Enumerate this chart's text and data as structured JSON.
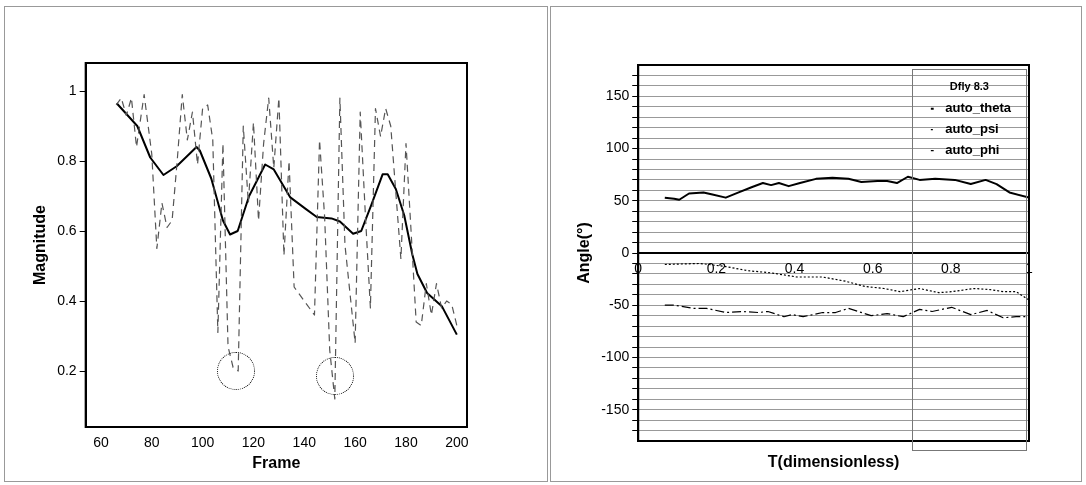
{
  "chart_data": [
    {
      "type": "line",
      "xlabel": "Frame",
      "ylabel": "Magnitude",
      "xlim": [
        54,
        204
      ],
      "xticks": [
        60,
        80,
        100,
        120,
        140,
        160,
        180,
        200
      ],
      "ylim": [
        0.04,
        1.08
      ],
      "yticks": [
        0.2,
        0.4,
        0.6,
        0.8,
        1
      ],
      "grid": false,
      "legend": false,
      "series": [
        {
          "color": "#555555",
          "line_style": "dashed",
          "x": [
            66,
            68,
            70,
            72,
            74,
            77,
            80,
            82,
            84,
            86,
            88,
            90,
            92,
            94,
            96,
            98,
            100,
            102,
            104,
            106,
            108,
            110,
            112,
            114,
            116,
            118,
            120,
            122,
            124,
            126,
            128,
            130,
            132,
            134,
            136,
            140,
            144,
            146,
            148,
            150,
            152,
            154,
            156,
            160,
            162,
            164,
            166,
            168,
            170,
            172,
            174,
            178,
            180,
            182,
            184,
            186,
            188,
            190,
            192,
            194,
            196,
            198,
            200
          ],
          "values": [
            0.96,
            0.98,
            0.93,
            0.98,
            0.84,
            0.99,
            0.82,
            0.55,
            0.68,
            0.61,
            0.63,
            0.8,
            0.99,
            0.86,
            0.94,
            0.79,
            0.95,
            0.96,
            0.86,
            0.31,
            0.85,
            0.27,
            0.21,
            0.2,
            0.9,
            0.68,
            0.91,
            0.63,
            0.85,
            0.98,
            0.78,
            0.98,
            0.53,
            0.8,
            0.44,
            0.4,
            0.36,
            0.86,
            0.64,
            0.26,
            0.12,
            0.98,
            0.56,
            0.28,
            0.94,
            0.65,
            0.38,
            0.95,
            0.87,
            0.95,
            0.9,
            0.52,
            0.85,
            0.6,
            0.34,
            0.33,
            0.45,
            0.36,
            0.45,
            0.38,
            0.4,
            0.39,
            0.33
          ]
        },
        {
          "color": "#000000",
          "line_style": "solid",
          "x": [
            66.2,
            74.3,
            79.4,
            84.6,
            89.8,
            97.6,
            98.9,
            103.4,
            108,
            110.8,
            113.8,
            118.3,
            124.6,
            128,
            134.5,
            140.4,
            144.9,
            150.7,
            154,
            159.2,
            162.4,
            166.3,
            170.8,
            172.8,
            176,
            179.3,
            182.5,
            184.5,
            188.3,
            194.2,
            200
          ],
          "values": [
            0.965,
            0.9,
            0.81,
            0.76,
            0.785,
            0.84,
            0.83,
            0.75,
            0.63,
            0.59,
            0.6,
            0.7,
            0.79,
            0.776,
            0.696,
            0.664,
            0.64,
            0.636,
            0.627,
            0.592,
            0.6,
            0.673,
            0.762,
            0.762,
            0.72,
            0.645,
            0.533,
            0.477,
            0.423,
            0.384,
            0.304
          ]
        }
      ]
    },
    {
      "type": "line",
      "xlabel": "T(dimensionless)",
      "ylabel": "Angle(°)",
      "xlim": [
        0,
        1
      ],
      "xticks": [
        0,
        0.2,
        0.4,
        0.6,
        0.8,
        1
      ],
      "ylim": [
        -180,
        180
      ],
      "yticks": [
        {
          "value": -170,
          "label": null
        },
        {
          "value": -160,
          "label": null
        },
        -150,
        {
          "value": -140,
          "label": null
        },
        {
          "value": -130,
          "label": null
        },
        {
          "value": -120,
          "label": null
        },
        {
          "value": -110,
          "label": null
        },
        -100,
        {
          "value": -90,
          "label": null
        },
        {
          "value": -80,
          "label": null
        },
        {
          "value": -70,
          "label": null
        },
        {
          "value": -60,
          "label": null
        },
        -50,
        {
          "value": -40,
          "label": null
        },
        {
          "value": -30,
          "label": null
        },
        {
          "value": -20,
          "label": null
        },
        {
          "value": -10,
          "label": null
        },
        0,
        {
          "value": 10,
          "label": null
        },
        {
          "value": 20,
          "label": null
        },
        {
          "value": 30,
          "label": null
        },
        {
          "value": 40,
          "label": null
        },
        50,
        {
          "value": 60,
          "label": null
        },
        {
          "value": 70,
          "label": null
        },
        {
          "value": 80,
          "label": null
        },
        {
          "value": 90,
          "label": null
        },
        100,
        {
          "value": 110,
          "label": null
        },
        {
          "value": 120,
          "label": null
        },
        {
          "value": 130,
          "label": null
        },
        {
          "value": 140,
          "label": null
        },
        150,
        {
          "value": 160,
          "label": null
        },
        {
          "value": 170,
          "label": null
        }
      ],
      "grid": "y",
      "legend": "top right",
      "legend_title": "Dfly 8.3",
      "series": [
        {
          "name": "auto_theta",
          "color": "#000000",
          "line_style": "solid",
          "x": [
            0.068,
            0.092,
            0.105,
            0.13,
            0.167,
            0.19,
            0.224,
            0.257,
            0.29,
            0.319,
            0.34,
            0.36,
            0.385,
            0.414,
            0.455,
            0.497,
            0.538,
            0.571,
            0.612,
            0.637,
            0.662,
            0.69,
            0.72,
            0.76,
            0.81,
            0.851,
            0.889,
            0.917,
            0.95,
            1.0
          ],
          "values": [
            53,
            52,
            51,
            57,
            58,
            56,
            53,
            58,
            63,
            67,
            65,
            67,
            64,
            67,
            71,
            72,
            71,
            68,
            69,
            69,
            67,
            73,
            70,
            71,
            70,
            66,
            70,
            66,
            58,
            53
          ]
        },
        {
          "name": "auto_psi",
          "color": "#000000",
          "line_style": "dotted",
          "x": [
            0.068,
            0.158,
            0.224,
            0.282,
            0.34,
            0.406,
            0.472,
            0.53,
            0.58,
            0.629,
            0.67,
            0.72,
            0.769,
            0.802,
            0.86,
            0.9,
            0.934,
            0.967,
            1.0
          ],
          "values": [
            -11,
            -10,
            -13,
            -17,
            -19,
            -23,
            -23,
            -27,
            -32,
            -34,
            -37,
            -34,
            -38,
            -37,
            -34,
            -35,
            -37,
            -37,
            -45
          ]
        },
        {
          "name": "auto_phi",
          "color": "#000000",
          "line_style": "dashdot",
          "x": [
            0.068,
            0.092,
            0.142,
            0.175,
            0.224,
            0.266,
            0.307,
            0.332,
            0.373,
            0.394,
            0.422,
            0.472,
            0.505,
            0.538,
            0.563,
            0.596,
            0.637,
            0.678,
            0.72,
            0.752,
            0.802,
            0.851,
            0.893,
            0.934,
            0.967,
            1.0
          ],
          "values": [
            -50,
            -50,
            -53,
            -53,
            -57,
            -56,
            -57,
            -56,
            -61,
            -59,
            -61,
            -57,
            -57,
            -53,
            -56,
            -60,
            -58,
            -61,
            -54,
            -56,
            -52,
            -59,
            -55,
            -62,
            -61,
            -61
          ]
        }
      ]
    }
  ]
}
